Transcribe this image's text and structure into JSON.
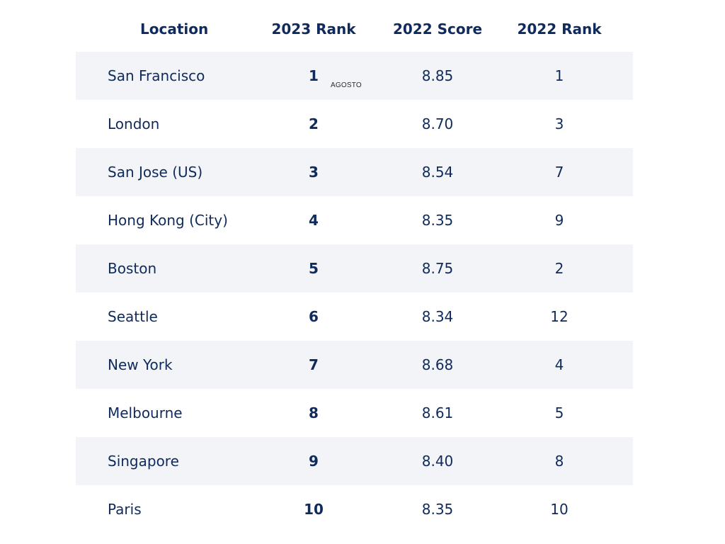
{
  "table": {
    "headers": {
      "location": "Location",
      "rank_2023": "2023 Rank",
      "score_2022": "2022 Score",
      "rank_2022": "2022 Rank"
    },
    "rows": [
      {
        "location": "San Francisco",
        "rank_2023": "1",
        "score_2022": "8.85",
        "rank_2022": "1"
      },
      {
        "location": "London",
        "rank_2023": "2",
        "score_2022": "8.70",
        "rank_2022": "3"
      },
      {
        "location": "San Jose (US)",
        "rank_2023": "3",
        "score_2022": "8.54",
        "rank_2022": "7"
      },
      {
        "location": "Hong Kong (City)",
        "rank_2023": "4",
        "score_2022": "8.35",
        "rank_2022": "9"
      },
      {
        "location": "Boston",
        "rank_2023": "5",
        "score_2022": "8.75",
        "rank_2022": "2"
      },
      {
        "location": "Seattle",
        "rank_2023": "6",
        "score_2022": "8.34",
        "rank_2022": "12"
      },
      {
        "location": "New York",
        "rank_2023": "7",
        "score_2022": "8.68",
        "rank_2022": "4"
      },
      {
        "location": "Melbourne",
        "rank_2023": "8",
        "score_2022": "8.61",
        "rank_2022": "5"
      },
      {
        "location": "Singapore",
        "rank_2023": "9",
        "score_2022": "8.40",
        "rank_2022": "8"
      },
      {
        "location": "Paris",
        "rank_2023": "10",
        "score_2022": "8.35",
        "rank_2022": "10"
      }
    ]
  },
  "overlay": {
    "watermark": "AGOSTO"
  },
  "colors": {
    "text": "#0f2a5c",
    "row_shade": "#f2f4f7",
    "background": "#ffffff"
  }
}
